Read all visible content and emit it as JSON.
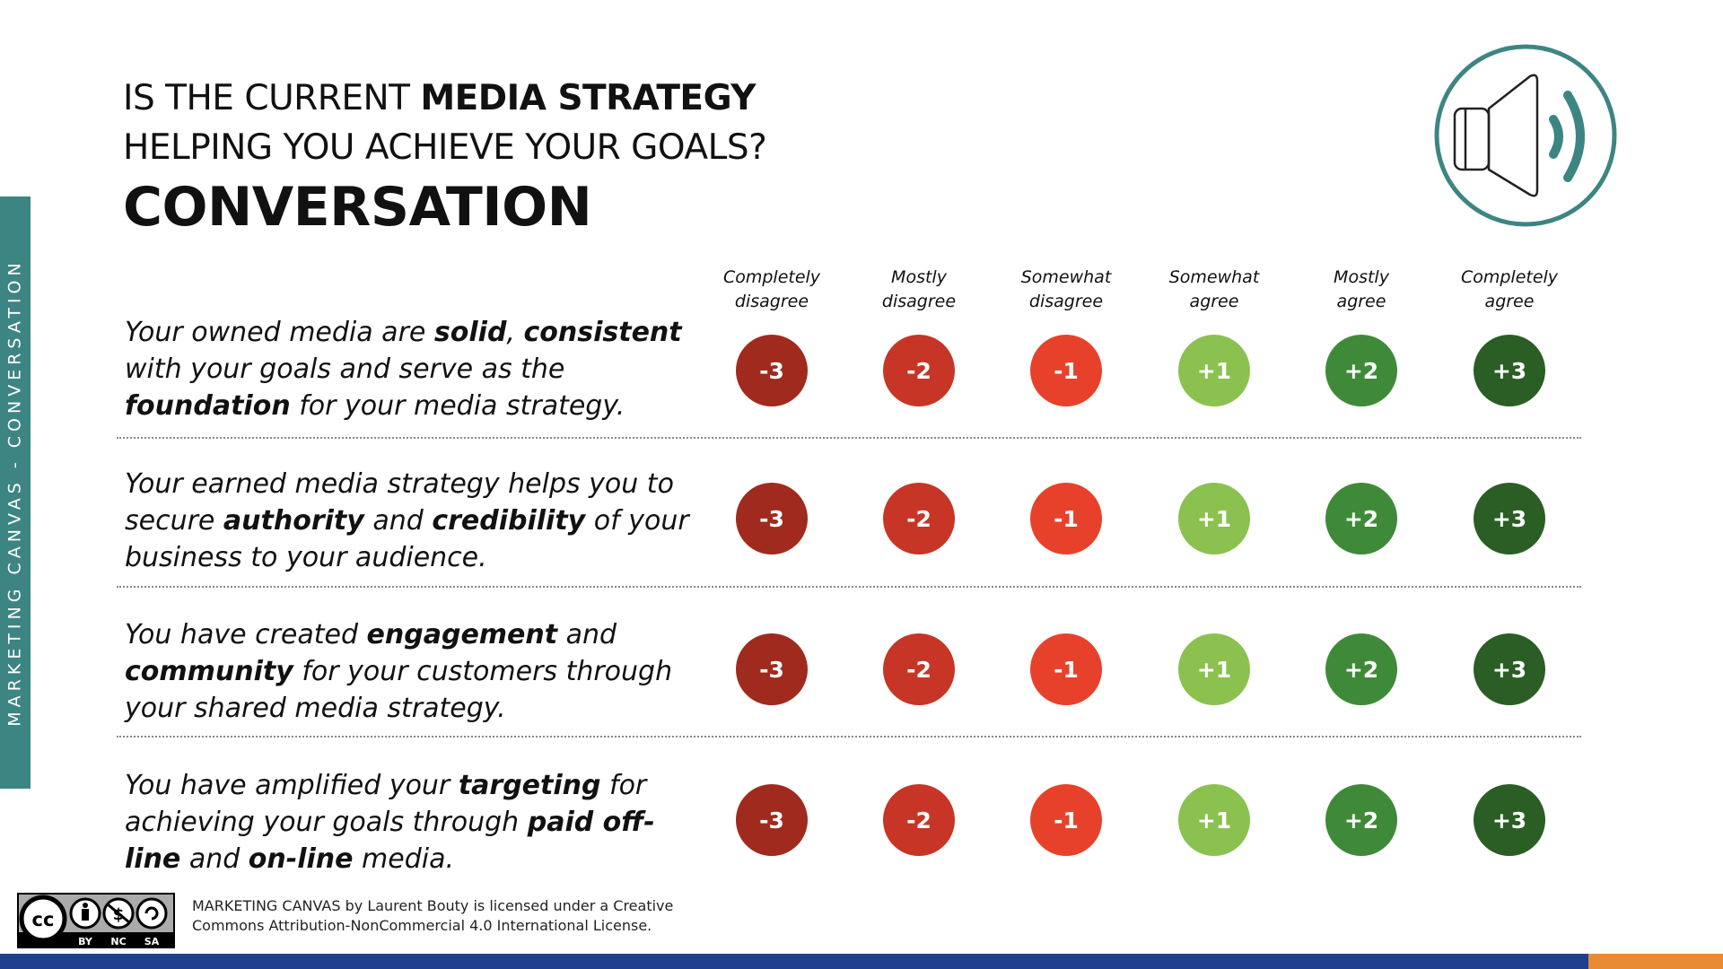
{
  "side_tab": "MARKETING CANVAS - CONVERSATION",
  "title": {
    "line1_prefix": "IS THE CURRENT ",
    "line1_bold": "MEDIA STRATEGY",
    "line2": "HELPING YOU ACHIEVE YOUR GOALS?"
  },
  "heading": "CONVERSATION",
  "speaker_icon": "speaker-volume-icon",
  "scale_headers": [
    {
      "line1": "Completely",
      "line2": "disagree"
    },
    {
      "line1": "Mostly",
      "line2": "disagree"
    },
    {
      "line1": "Somewhat",
      "line2": "disagree"
    },
    {
      "line1": "Somewhat",
      "line2": "agree"
    },
    {
      "line1": "Mostly",
      "line2": "agree"
    },
    {
      "line1": "Completely",
      "line2": "agree"
    }
  ],
  "scale": [
    {
      "label": "-3",
      "color": "#a02a1d"
    },
    {
      "label": "-2",
      "color": "#c63526"
    },
    {
      "label": "-1",
      "color": "#e8412b"
    },
    {
      "label": "+1",
      "color": "#8bc14f"
    },
    {
      "label": "+2",
      "color": "#3f8a38"
    },
    {
      "label": "+3",
      "color": "#2a5e24"
    }
  ],
  "statements": [
    [
      {
        "t": "Your owned media are ",
        "b": false
      },
      {
        "t": "solid",
        "b": true
      },
      {
        "t": ", ",
        "b": false
      },
      {
        "t": "consistent",
        "b": true
      },
      {
        "t": " with your goals and serve as the ",
        "b": false
      },
      {
        "t": "foundation",
        "b": true
      },
      {
        "t": " for your media strategy.",
        "b": false
      }
    ],
    [
      {
        "t": "Your earned media strategy helps you to secure ",
        "b": false
      },
      {
        "t": "authority",
        "b": true
      },
      {
        "t": " and ",
        "b": false
      },
      {
        "t": "credibility",
        "b": true
      },
      {
        "t": " of your business to your audience.",
        "b": false
      }
    ],
    [
      {
        "t": "You have created ",
        "b": false
      },
      {
        "t": "engagement",
        "b": true
      },
      {
        "t": " and ",
        "b": false
      },
      {
        "t": "community",
        "b": true
      },
      {
        "t": " for your customers through your shared media strategy.",
        "b": false
      }
    ],
    [
      {
        "t": "You have amplified your ",
        "b": false
      },
      {
        "t": "targeting",
        "b": true
      },
      {
        "t": " for achieving your goals through ",
        "b": false
      },
      {
        "t": "paid off-line",
        "b": true
      },
      {
        "t": " and ",
        "b": false
      },
      {
        "t": "on-line",
        "b": true
      },
      {
        "t": " media.",
        "b": false
      }
    ]
  ],
  "license": {
    "icon": "cc-by-nc-sa-icon",
    "badges": [
      "BY",
      "NC",
      "SA"
    ],
    "line1": "MARKETING CANVAS by Laurent Bouty is licensed under a Creative",
    "line2": "Commons Attribution-NonCommercial 4.0 International License."
  }
}
